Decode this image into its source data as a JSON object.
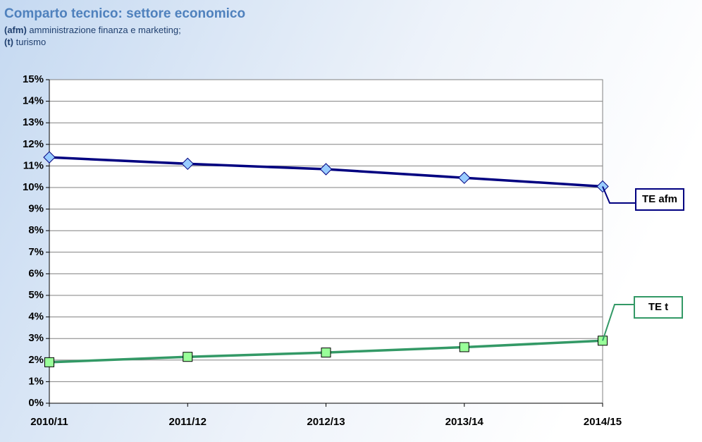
{
  "chart_data": {
    "type": "line",
    "title": "Comparto tecnico:  settore economico",
    "subtitle": [
      {
        "abbr": "(afm)",
        "text": "amministrazione finanza e marketing;"
      },
      {
        "abbr": "(t)",
        "text": "turismo"
      }
    ],
    "categories": [
      "2010/11",
      "2011/12",
      "2012/13",
      "2013/14",
      "2014/15"
    ],
    "series": [
      {
        "name": "TE afm",
        "color": "#000080",
        "marker_color": "#99ccff",
        "marker": "diamond",
        "values": [
          11.4,
          11.1,
          10.85,
          10.45,
          10.05
        ]
      },
      {
        "name": "TE t",
        "color": "#339966",
        "marker_color": "#99ff99",
        "marker": "square",
        "values": [
          1.9,
          2.15,
          2.35,
          2.6,
          2.9
        ]
      }
    ],
    "ylim": [
      0,
      15
    ],
    "yticks": [
      {
        "value": 0,
        "label": "0%"
      },
      {
        "value": 1,
        "label": "1%"
      },
      {
        "value": 2,
        "label": "2%"
      },
      {
        "value": 3,
        "label": "3%"
      },
      {
        "value": 4,
        "label": "4%"
      },
      {
        "value": 5,
        "label": "5%"
      },
      {
        "value": 6,
        "label": "6%"
      },
      {
        "value": 7,
        "label": "7%"
      },
      {
        "value": 8,
        "label": "8%"
      },
      {
        "value": 9,
        "label": "9%"
      },
      {
        "value": 10,
        "label": "10%"
      },
      {
        "value": 11,
        "label": "11%"
      },
      {
        "value": 12,
        "label": "12%"
      },
      {
        "value": 13,
        "label": "13%"
      },
      {
        "value": 14,
        "label": "14%"
      },
      {
        "value": 15,
        "label": "15%"
      }
    ],
    "grid": true
  }
}
